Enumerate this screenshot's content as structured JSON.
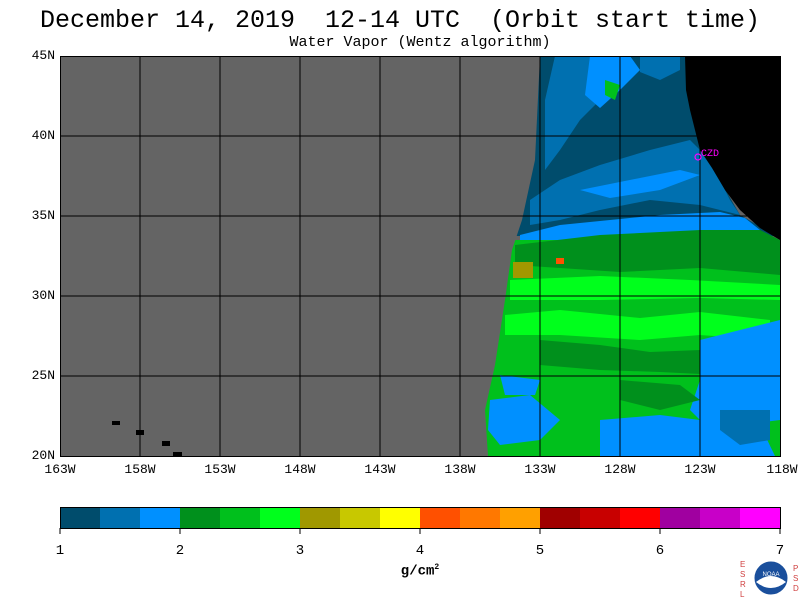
{
  "header": {
    "title": "December 14, 2019  12-14 UTC  (Orbit start time)",
    "subtitle": "Water Vapor (Wentz algorithm)"
  },
  "map": {
    "lat_labels": [
      "45N",
      "40N",
      "35N",
      "30N",
      "25N",
      "20N"
    ],
    "lon_labels": [
      "163W",
      "158W",
      "153W",
      "148W",
      "143W",
      "138W",
      "133W",
      "128W",
      "123W",
      "118W"
    ],
    "station_label": "CZD",
    "nodata_color": "#646464",
    "land_color": "#000000",
    "station_color": "#ff00ff"
  },
  "colorbar": {
    "tick_labels": [
      "1",
      "2",
      "3",
      "4",
      "5",
      "6",
      "7"
    ],
    "unit_text": "g/cm",
    "unit_exp": "2",
    "colors": [
      "#004c6c",
      "#0070b0",
      "#0090ff",
      "#00901c",
      "#00c01c",
      "#00ff1c",
      "#a09800",
      "#c8c800",
      "#ffff00",
      "#ff5000",
      "#ff7800",
      "#ffa000",
      "#a00000",
      "#c80000",
      "#ff0000",
      "#a000a0",
      "#c800c8",
      "#ff00ff"
    ]
  },
  "logo": {
    "left_letters": [
      "E",
      "S",
      "R",
      "L"
    ],
    "right_letters": [
      "P",
      "S",
      "D"
    ],
    "center_text": "NOAA"
  }
}
